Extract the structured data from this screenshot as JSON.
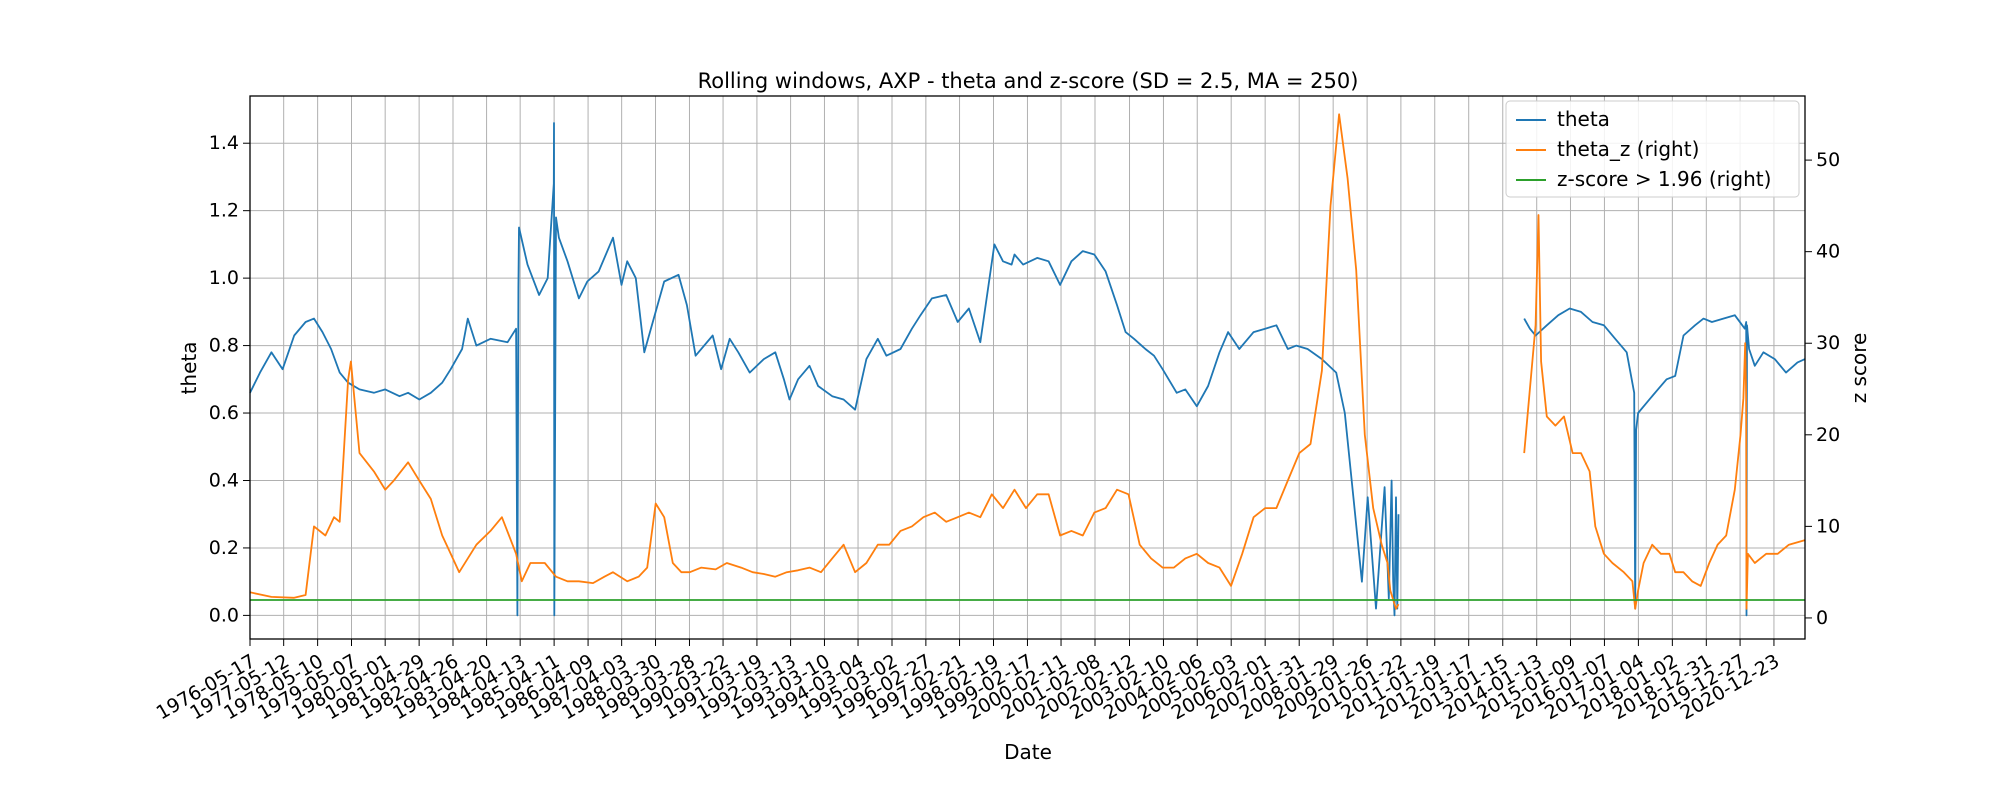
{
  "chart_data": {
    "type": "line",
    "title": "Rolling windows, AXP - theta and z-score (SD = 2.5, MA = 250)",
    "xlabel": "Date",
    "ylabel": "theta",
    "ylabel_right": "z score",
    "ylim": [
      -0.07,
      1.54
    ],
    "ylim_right": [
      -2.3,
      57.0
    ],
    "yticks": [
      "0.0",
      "0.2",
      "0.4",
      "0.6",
      "0.8",
      "1.0",
      "1.2",
      "1.4"
    ],
    "yticks_right": [
      "0",
      "10",
      "20",
      "30",
      "40",
      "50"
    ],
    "xlim": [
      "1976-05-17",
      "2021-11-20"
    ],
    "xticks": [
      "1976-05-17",
      "1977-05-12",
      "1978-05-10",
      "1979-05-07",
      "1980-05-01",
      "1981-04-29",
      "1982-04-26",
      "1983-04-20",
      "1984-04-13",
      "1985-04-11",
      "1986-04-09",
      "1987-04-03",
      "1988-03-30",
      "1989-03-28",
      "1990-03-22",
      "1991-03-19",
      "1992-03-13",
      "1993-03-10",
      "1994-03-04",
      "1995-03-02",
      "1996-02-27",
      "1997-02-21",
      "1998-02-19",
      "1999-02-17",
      "2000-02-11",
      "2001-02-08",
      "2002-02-12",
      "2003-02-10",
      "2004-02-06",
      "2005-02-03",
      "2006-02-01",
      "2007-01-31",
      "2008-01-29",
      "2009-01-26",
      "2010-01-22",
      "2011-01-19",
      "2012-01-17",
      "2013-01-15",
      "2014-01-13",
      "2015-01-09",
      "2016-01-07",
      "2017-01-04",
      "2018-01-02",
      "2018-12-31",
      "2019-12-27",
      "2020-12-23"
    ],
    "grid": true,
    "legend_position": "top-right",
    "series": [
      {
        "name": "theta",
        "axis": "left",
        "color": "#1f77b4",
        "x": [
          "1976-05-17",
          "1976-09-01",
          "1977-01-01",
          "1977-05-01",
          "1977-09-01",
          "1978-01-01",
          "1978-04-01",
          "1978-07-01",
          "1978-10-01",
          "1979-01-01",
          "1979-04-01",
          "1979-08-01",
          "1980-01-01",
          "1980-05-01",
          "1980-10-01",
          "1981-01-01",
          "1981-05-01",
          "1981-09-01",
          "1982-01-01",
          "1982-04-01",
          "1982-08-01",
          "1982-10-01",
          "1983-01-01",
          "1983-06-01",
          "1983-12-01",
          "1984-03-01",
          "1984-03-15",
          "1984-03-25",
          "1984-04-01",
          "1984-07-01",
          "1984-11-01",
          "1985-02-01",
          "1985-04-08",
          "1985-04-10",
          "1985-04-13",
          "1985-05-01",
          "1985-06-01",
          "1985-09-01",
          "1986-01-01",
          "1986-04-01",
          "1986-08-01",
          "1987-01-01",
          "1987-04-01",
          "1987-06-01",
          "1987-09-01",
          "1987-12-01",
          "1988-03-01",
          "1988-07-01",
          "1988-12-01",
          "1989-03-01",
          "1989-06-01",
          "1989-12-01",
          "1990-03-01",
          "1990-06-01",
          "1990-09-01",
          "1991-01-01",
          "1991-06-01",
          "1991-10-01",
          "1992-01-01",
          "1992-03-01",
          "1992-06-01",
          "1992-10-01",
          "1993-01-01",
          "1993-06-01",
          "1993-10-01",
          "1994-02-01",
          "1994-06-01",
          "1994-10-01",
          "1995-01-01",
          "1995-06-01",
          "1995-10-01",
          "1996-01-01",
          "1996-05-01",
          "1996-10-01",
          "1997-02-01",
          "1997-06-01",
          "1997-10-01",
          "1998-03-01",
          "1998-06-01",
          "1998-09-01",
          "1998-10-01",
          "1999-01-01",
          "1999-06-01",
          "1999-10-01",
          "2000-02-01",
          "2000-06-01",
          "2000-10-01",
          "2001-02-01",
          "2001-06-01",
          "2001-10-01",
          "2002-01-01",
          "2002-04-01",
          "2002-08-01",
          "2002-11-01",
          "2003-02-01",
          "2003-07-01",
          "2003-10-01",
          "2004-02-01",
          "2004-06-01",
          "2004-10-01",
          "2005-01-01",
          "2005-05-01",
          "2005-10-01",
          "2006-02-01",
          "2006-06-01",
          "2006-10-01",
          "2007-01-01",
          "2007-05-01",
          "2007-10-01",
          "2008-03-01",
          "2008-06-01",
          "2008-09-01",
          "2008-12-01",
          "2009-02-01",
          "2009-05-01",
          "2009-08-01",
          "2009-09-15",
          "2009-10-15",
          "2009-11-01",
          "2009-11-15",
          "2009-12-01",
          "2009-12-15",
          "2009-12-28"
        ],
        "y": [
          0.66,
          0.72,
          0.78,
          0.73,
          0.83,
          0.87,
          0.88,
          0.84,
          0.79,
          0.72,
          0.69,
          0.67,
          0.66,
          0.67,
          0.65,
          0.66,
          0.64,
          0.66,
          0.69,
          0.73,
          0.79,
          0.88,
          0.8,
          0.82,
          0.81,
          0.85,
          0.0,
          0.97,
          1.15,
          1.04,
          0.95,
          1.0,
          1.28,
          1.46,
          0.0,
          1.18,
          1.12,
          1.05,
          0.94,
          0.99,
          1.02,
          1.12,
          0.98,
          1.05,
          1.0,
          0.78,
          0.87,
          0.99,
          1.01,
          0.92,
          0.77,
          0.83,
          0.73,
          0.82,
          0.78,
          0.72,
          0.76,
          0.78,
          0.7,
          0.64,
          0.7,
          0.74,
          0.68,
          0.65,
          0.64,
          0.61,
          0.76,
          0.82,
          0.77,
          0.79,
          0.85,
          0.89,
          0.94,
          0.95,
          0.87,
          0.91,
          0.81,
          1.1,
          1.05,
          1.04,
          1.07,
          1.04,
          1.06,
          1.05,
          0.98,
          1.05,
          1.08,
          1.07,
          1.02,
          0.92,
          0.84,
          0.82,
          0.79,
          0.77,
          0.73,
          0.66,
          0.67,
          0.62,
          0.68,
          0.78,
          0.84,
          0.79,
          0.84,
          0.85,
          0.86,
          0.79,
          0.8,
          0.79,
          0.76,
          0.72,
          0.6,
          0.35,
          0.1,
          0.35,
          0.02,
          0.38,
          0.05,
          0.4,
          0.1,
          0.0,
          0.35,
          0.02,
          0.3
        ]
      },
      {
        "name": "theta",
        "axis": "left",
        "color": "#1f77b4",
        "x": [
          "2013-09-01",
          "2013-11-01",
          "2014-01-01",
          "2014-05-01",
          "2014-09-01",
          "2015-01-01",
          "2015-05-01",
          "2015-09-01",
          "2016-01-01",
          "2016-05-01",
          "2016-09-01",
          "2016-11-20",
          "2016-12-01",
          "2016-12-10",
          "2017-01-01",
          "2017-04-01",
          "2017-08-01",
          "2017-11-01",
          "2018-02-01",
          "2018-05-01",
          "2018-09-01",
          "2018-12-01",
          "2019-03-01",
          "2019-07-01",
          "2019-11-01",
          "2020-02-15",
          "2020-03-01",
          "2020-03-05",
          "2020-03-10",
          "2020-04-01",
          "2020-06-01",
          "2020-09-01",
          "2021-01-01",
          "2021-05-01",
          "2021-09-01",
          "2021-11-20"
        ],
        "y": [
          0.88,
          0.85,
          0.83,
          0.86,
          0.89,
          0.91,
          0.9,
          0.87,
          0.86,
          0.82,
          0.78,
          0.66,
          0.02,
          0.55,
          0.6,
          0.63,
          0.67,
          0.7,
          0.71,
          0.83,
          0.86,
          0.88,
          0.87,
          0.88,
          0.89,
          0.85,
          0.87,
          0.0,
          0.86,
          0.79,
          0.74,
          0.78,
          0.76,
          0.72,
          0.75,
          0.76
        ]
      },
      {
        "name": "theta_z (right)",
        "axis": "right",
        "color": "#ff7f0e",
        "x": [
          "1976-05-17",
          "1977-01-01",
          "1977-09-01",
          "1978-01-01",
          "1978-04-01",
          "1978-08-01",
          "1978-11-01",
          "1979-01-01",
          "1979-04-01",
          "1979-05-01",
          "1979-08-01",
          "1980-01-01",
          "1980-05-01",
          "1980-08-01",
          "1981-01-01",
          "1981-05-01",
          "1981-09-01",
          "1982-01-01",
          "1982-04-01",
          "1982-07-01",
          "1983-01-01",
          "1983-06-01",
          "1983-10-01",
          "1984-03-01",
          "1984-05-01",
          "1984-08-01",
          "1985-01-01",
          "1985-05-01",
          "1985-09-01",
          "1986-01-01",
          "1986-06-01",
          "1986-10-01",
          "1987-01-01",
          "1987-06-01",
          "1987-10-01",
          "1988-01-01",
          "1988-04-01",
          "1988-07-01",
          "1988-10-01",
          "1989-01-01",
          "1989-04-01",
          "1989-08-01",
          "1990-01-01",
          "1990-05-01",
          "1990-10-01",
          "1991-02-01",
          "1991-06-01",
          "1991-10-01",
          "1992-02-01",
          "1992-06-01",
          "1992-10-01",
          "1993-02-01",
          "1993-06-01",
          "1993-10-01",
          "1994-02-01",
          "1994-06-01",
          "1994-10-01",
          "1995-02-01",
          "1995-06-01",
          "1995-10-01",
          "1996-02-01",
          "1996-06-01",
          "1996-10-01",
          "1997-02-01",
          "1997-06-01",
          "1997-10-01",
          "1998-02-01",
          "1998-06-01",
          "1998-10-01",
          "1999-02-01",
          "1999-06-01",
          "1999-10-01",
          "2000-02-01",
          "2000-06-01",
          "2000-10-01",
          "2001-02-01",
          "2001-06-01",
          "2001-10-01",
          "2002-02-01",
          "2002-06-01",
          "2002-10-01",
          "2003-02-01",
          "2003-06-01",
          "2003-10-01",
          "2004-02-01",
          "2004-06-01",
          "2004-10-01",
          "2005-02-01",
          "2005-06-01",
          "2005-10-01",
          "2006-02-01",
          "2006-06-01",
          "2006-10-01",
          "2007-02-01",
          "2007-06-01",
          "2007-10-01",
          "2008-01-01",
          "2008-04-01",
          "2008-07-01",
          "2008-10-01",
          "2009-01-01",
          "2009-04-01",
          "2009-07-01",
          "2009-09-01",
          "2009-10-01",
          "2009-12-01",
          "2009-12-28"
        ],
        "y": [
          2.8,
          2.3,
          2.2,
          2.5,
          10,
          9,
          11,
          10.5,
          26,
          28,
          18,
          16,
          14,
          15,
          17,
          15,
          13,
          9,
          7,
          5,
          8,
          9.5,
          11,
          7,
          4,
          6,
          6,
          4.5,
          4,
          4,
          3.8,
          4.5,
          5,
          4,
          4.5,
          5.5,
          12.5,
          11,
          6,
          5,
          5,
          5.5,
          5.3,
          6,
          5.5,
          5,
          4.8,
          4.5,
          5,
          5.2,
          5.5,
          5,
          6.5,
          8,
          5,
          6,
          8,
          8,
          9.5,
          10,
          11,
          11.5,
          10.5,
          11,
          11.5,
          11,
          13.5,
          12,
          14,
          12,
          13.5,
          13.5,
          9,
          9.5,
          9,
          11.5,
          12,
          14,
          13.5,
          8,
          6.5,
          5.5,
          5.5,
          6.5,
          7,
          6,
          5.5,
          3.5,
          7,
          11,
          12,
          12,
          15,
          18,
          19,
          27,
          45,
          55,
          48,
          38,
          20,
          12,
          8,
          6,
          3,
          1,
          1.5
        ]
      },
      {
        "name": "theta_z (right)",
        "axis": "right",
        "color": "#ff7f0e",
        "x": [
          "2013-09-01",
          "2013-11-01",
          "2014-01-01",
          "2014-02-01",
          "2014-03-01",
          "2014-05-01",
          "2014-08-01",
          "2014-11-01",
          "2015-02-01",
          "2015-05-01",
          "2015-08-01",
          "2015-10-01",
          "2016-01-01",
          "2016-04-01",
          "2016-08-01",
          "2016-11-01",
          "2016-12-01",
          "2017-01-01",
          "2017-03-01",
          "2017-06-01",
          "2017-09-01",
          "2017-12-01",
          "2018-02-01",
          "2018-05-01",
          "2018-08-01",
          "2018-11-01",
          "2019-02-01",
          "2019-05-01",
          "2019-08-01",
          "2019-11-01",
          "2020-01-01",
          "2020-02-01",
          "2020-02-20",
          "2020-03-01",
          "2020-03-05",
          "2020-03-20",
          "2020-06-01",
          "2020-10-01",
          "2021-02-01",
          "2021-06-01",
          "2021-11-20"
        ],
        "y": [
          18,
          25,
          32,
          44,
          28,
          22,
          21,
          22,
          18,
          18,
          16,
          10,
          7,
          6,
          5,
          4,
          1,
          3,
          6,
          8,
          7,
          7,
          5,
          5,
          4,
          3.5,
          6,
          8,
          9,
          14,
          20,
          24,
          30,
          24,
          1,
          7,
          6,
          7,
          7,
          8,
          8.5
        ]
      },
      {
        "name": "z-score > 1.96 (right)",
        "axis": "right",
        "color": "#2ca02c",
        "x": [
          "1976-05-17",
          "2021-11-20"
        ],
        "y": [
          1.96,
          1.96
        ]
      }
    ]
  }
}
